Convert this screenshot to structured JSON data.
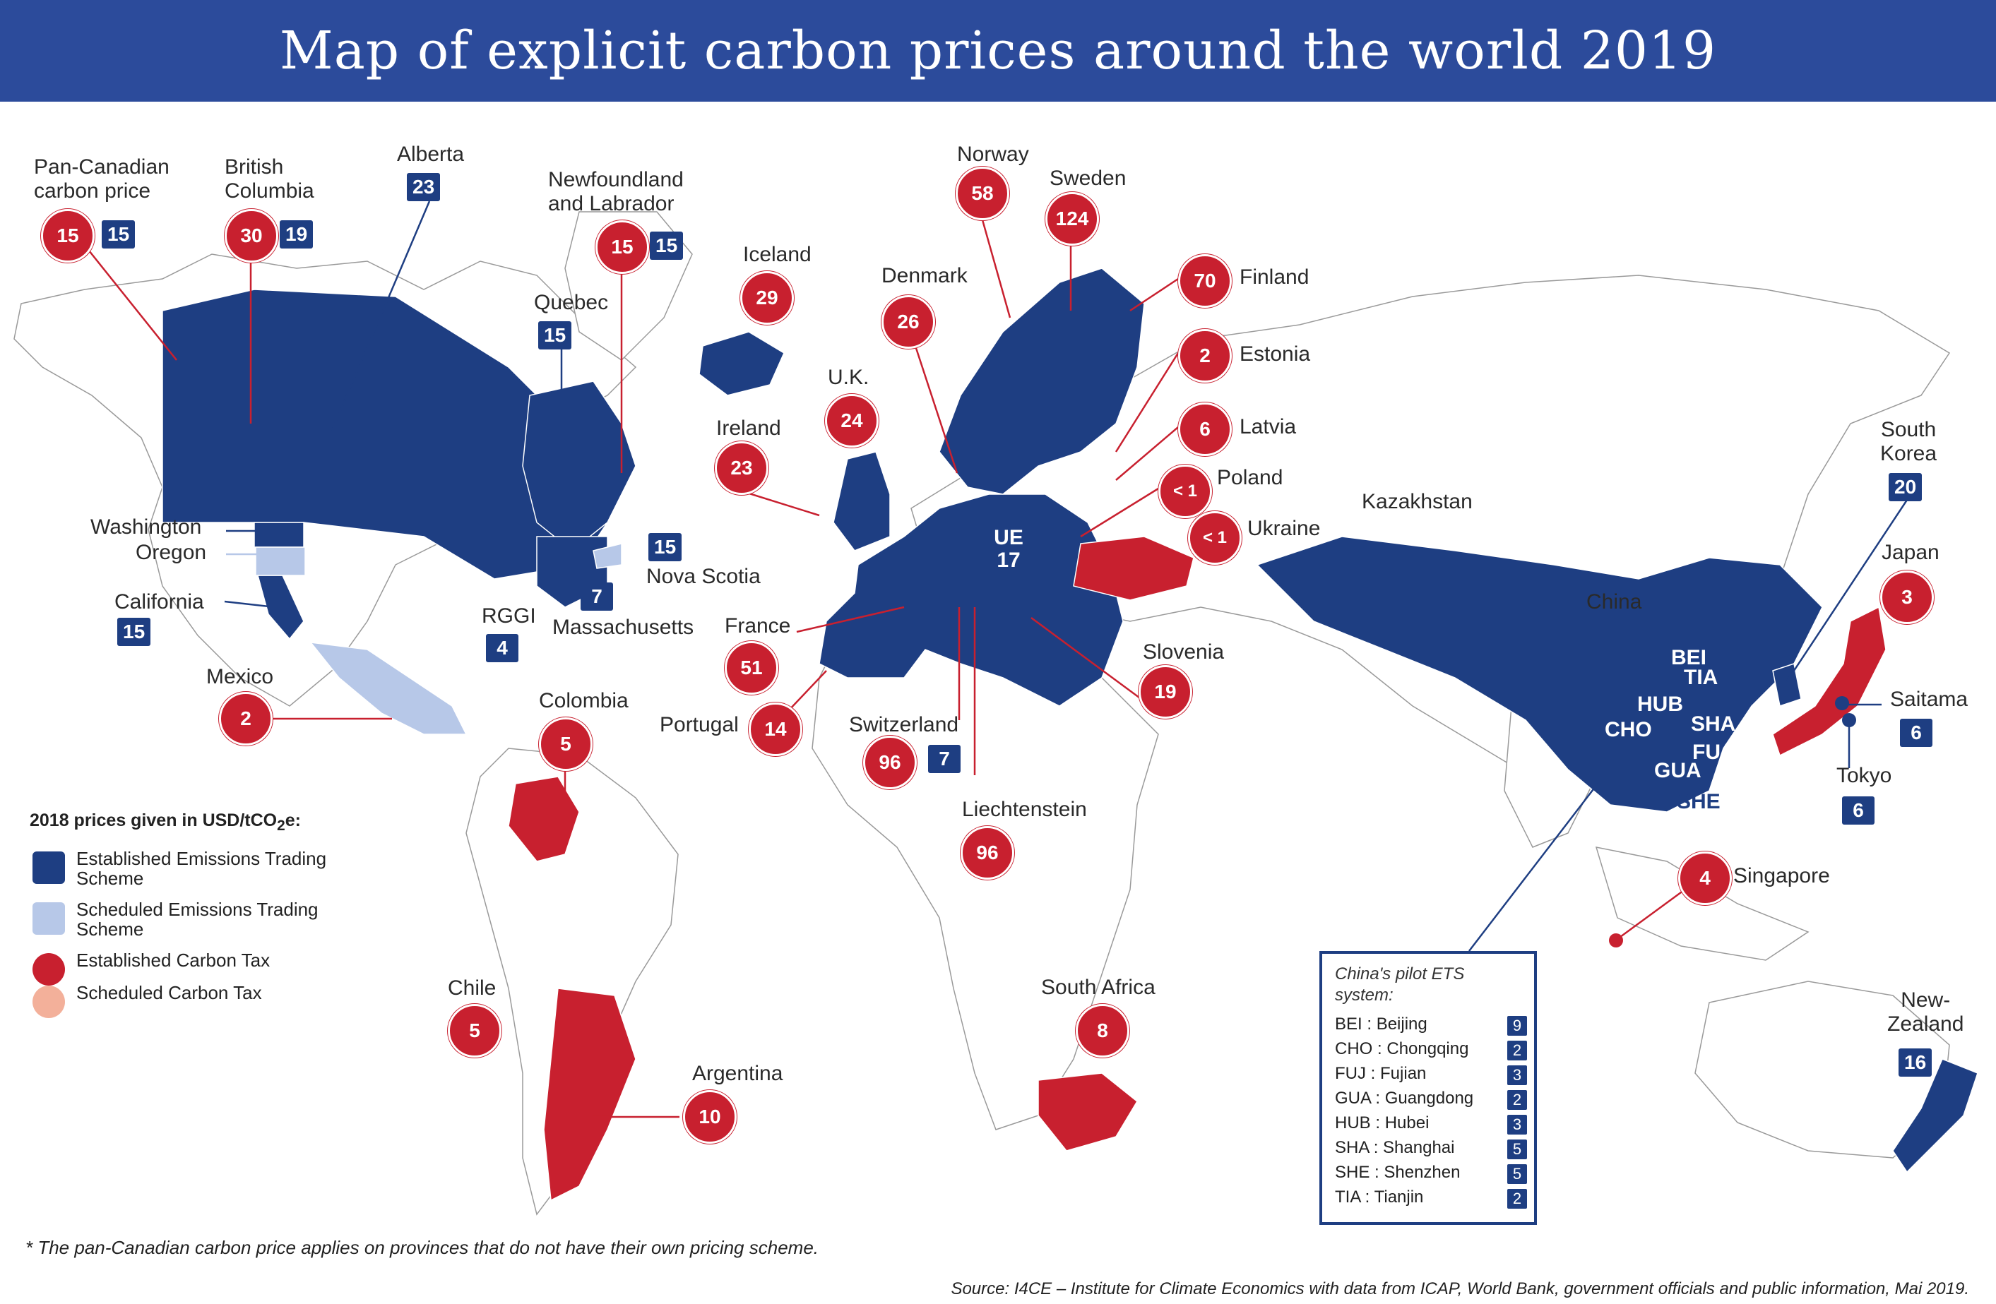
{
  "title": "Map of explicit carbon prices around the world 2019",
  "colors": {
    "header": "#2c4b9b",
    "ets": "#1e3e82",
    "ets_scheduled": "#b7c8e8",
    "tax": "#c8202f",
    "tax_scheduled": "#f3b09a"
  },
  "legend": {
    "title": "2018 prices given in USD/tCO",
    "title_sub": "2",
    "title_end": "e:",
    "items": [
      {
        "label": "Established Emissions Trading Scheme",
        "color": "#1e3e82",
        "shape": "square"
      },
      {
        "label": "Scheduled Emissions Trading Scheme",
        "color": "#b7c8e8",
        "shape": "square"
      },
      {
        "label": "Established Carbon Tax",
        "color": "#c8202f",
        "shape": "pin"
      },
      {
        "label": "Scheduled Carbon Tax",
        "color": "#f3b09a",
        "shape": "pin"
      }
    ]
  },
  "regions": {
    "pan_canada": {
      "name": "Pan-Canadian carbon price",
      "tax": "15",
      "ets": "15"
    },
    "british_columbia": {
      "name": "British Columbia",
      "tax": "30",
      "ets": "19"
    },
    "alberta": {
      "name": "Alberta",
      "ets": "23"
    },
    "newfoundland": {
      "name": "Newfoundland and Labrador",
      "tax": "15",
      "ets": "15"
    },
    "quebec": {
      "name": "Quebec",
      "ets": "15"
    },
    "washington": {
      "name": "Washington"
    },
    "oregon": {
      "name": "Oregon"
    },
    "california": {
      "name": "California",
      "ets": "15"
    },
    "nova_scotia": {
      "name": "Nova Scotia",
      "ets": "15"
    },
    "massachusetts": {
      "name": "Massachusetts",
      "ets": "7"
    },
    "rggi": {
      "name": "RGGI",
      "ets": "4"
    },
    "mexico": {
      "name": "Mexico",
      "tax": "2"
    },
    "colombia": {
      "name": "Colombia",
      "tax": "5"
    },
    "chile": {
      "name": "Chile",
      "tax": "5"
    },
    "argentina": {
      "name": "Argentina",
      "tax": "10"
    },
    "iceland": {
      "name": "Iceland",
      "tax": "29"
    },
    "ireland": {
      "name": "Ireland",
      "tax": "23"
    },
    "uk": {
      "name": "U.K.",
      "tax": "24"
    },
    "denmark": {
      "name": "Denmark",
      "tax": "26"
    },
    "norway": {
      "name": "Norway",
      "tax": "58"
    },
    "sweden": {
      "name": "Sweden",
      "tax": "124"
    },
    "finland": {
      "name": "Finland",
      "tax": "70"
    },
    "estonia": {
      "name": "Estonia",
      "tax": "2"
    },
    "latvia": {
      "name": "Latvia",
      "tax": "6"
    },
    "poland": {
      "name": "Poland",
      "tax": "< 1"
    },
    "ukraine": {
      "name": "Ukraine",
      "tax": "< 1"
    },
    "eu": {
      "name": "UE",
      "ets": "17"
    },
    "france": {
      "name": "France",
      "tax": "51"
    },
    "portugal": {
      "name": "Portugal",
      "tax": "14"
    },
    "switzerland": {
      "name": "Switzerland",
      "tax": "96",
      "ets": "7"
    },
    "liechtenstein": {
      "name": "Liechtenstein",
      "tax": "96"
    },
    "slovenia": {
      "name": "Slovenia",
      "tax": "19"
    },
    "south_africa": {
      "name": "South Africa",
      "tax": "8"
    },
    "kazakhstan": {
      "name": "Kazakhstan"
    },
    "china": {
      "name": "China"
    },
    "south_korea": {
      "name": "South Korea",
      "ets": "20"
    },
    "japan": {
      "name": "Japan",
      "tax": "3"
    },
    "saitama": {
      "name": "Saitama",
      "ets": "6"
    },
    "tokyo": {
      "name": "Tokyo",
      "ets": "6"
    },
    "singapore": {
      "name": "Singapore",
      "tax": "4"
    },
    "new_zealand": {
      "name": "New-Zealand",
      "ets": "16"
    }
  },
  "china_codes": [
    "BEI",
    "TIA",
    "HUB",
    "CHO",
    "SHA",
    "FUJ",
    "GUA",
    "SHE"
  ],
  "china_box": {
    "title": "China's pilot ETS system:",
    "rows": [
      {
        "code": "BEI",
        "name": "Beijing",
        "value": "9"
      },
      {
        "code": "CHO",
        "name": "Chongqing",
        "value": "2"
      },
      {
        "code": "FUJ",
        "name": "Fujian",
        "value": "3"
      },
      {
        "code": "GUA",
        "name": "Guangdong",
        "value": "2"
      },
      {
        "code": "HUB",
        "name": "Hubei",
        "value": "3"
      },
      {
        "code": "SHA",
        "name": "Shanghai",
        "value": "5"
      },
      {
        "code": "SHE",
        "name": "Shenzhen",
        "value": "5"
      },
      {
        "code": "TIA",
        "name": "Tianjin",
        "value": "2"
      }
    ]
  },
  "footnote": "* The pan-Canadian carbon price applies on provinces that do not have their own pricing scheme.",
  "source": "Source: I4CE – Institute for Climate Economics with data from ICAP, World Bank, government officials and public information, Mai 2019."
}
